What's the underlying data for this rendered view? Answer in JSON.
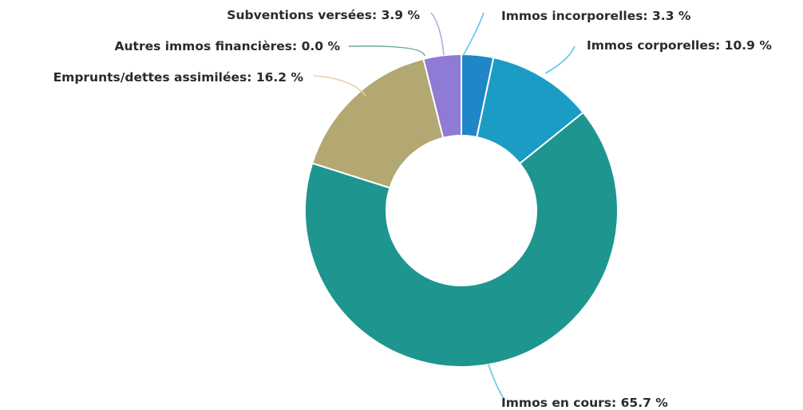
{
  "chart_data": {
    "type": "pie",
    "variant": "donut",
    "title": "",
    "legend": "none",
    "unit": "%",
    "slices": [
      {
        "label": "Immos incorporelles",
        "value": 3.3,
        "color": "#1f87c7",
        "leader_color": "#5ac8ec",
        "text": "Immos incorporelles: 3.3 %"
      },
      {
        "label": "Immos corporelles",
        "value": 10.9,
        "color": "#1a9cc4",
        "leader_color": "#5ac8ec",
        "text": "Immos corporelles: 10.9 %"
      },
      {
        "label": "Immos en cours",
        "value": 65.7,
        "color": "#1e958f",
        "leader_color": "#5ac8ec",
        "text": "Immos en cours: 65.7 %"
      },
      {
        "label": "Emprunts/dettes assimilées",
        "value": 16.2,
        "color": "#b3a772",
        "leader_color": "#e6cfa4",
        "text": "Emprunts/dettes assimilées: 16.2 %"
      },
      {
        "label": "Autres immos financières",
        "value": 0.0,
        "color": "#6fa9a3",
        "leader_color": "#6fa9a3",
        "text": "Autres immos financières: 0.0 %"
      },
      {
        "label": "Subventions versées",
        "value": 3.9,
        "color": "#8f7bd6",
        "leader_color": "#b3acdf",
        "text": "Subventions versées: 3.9 %"
      }
    ]
  }
}
